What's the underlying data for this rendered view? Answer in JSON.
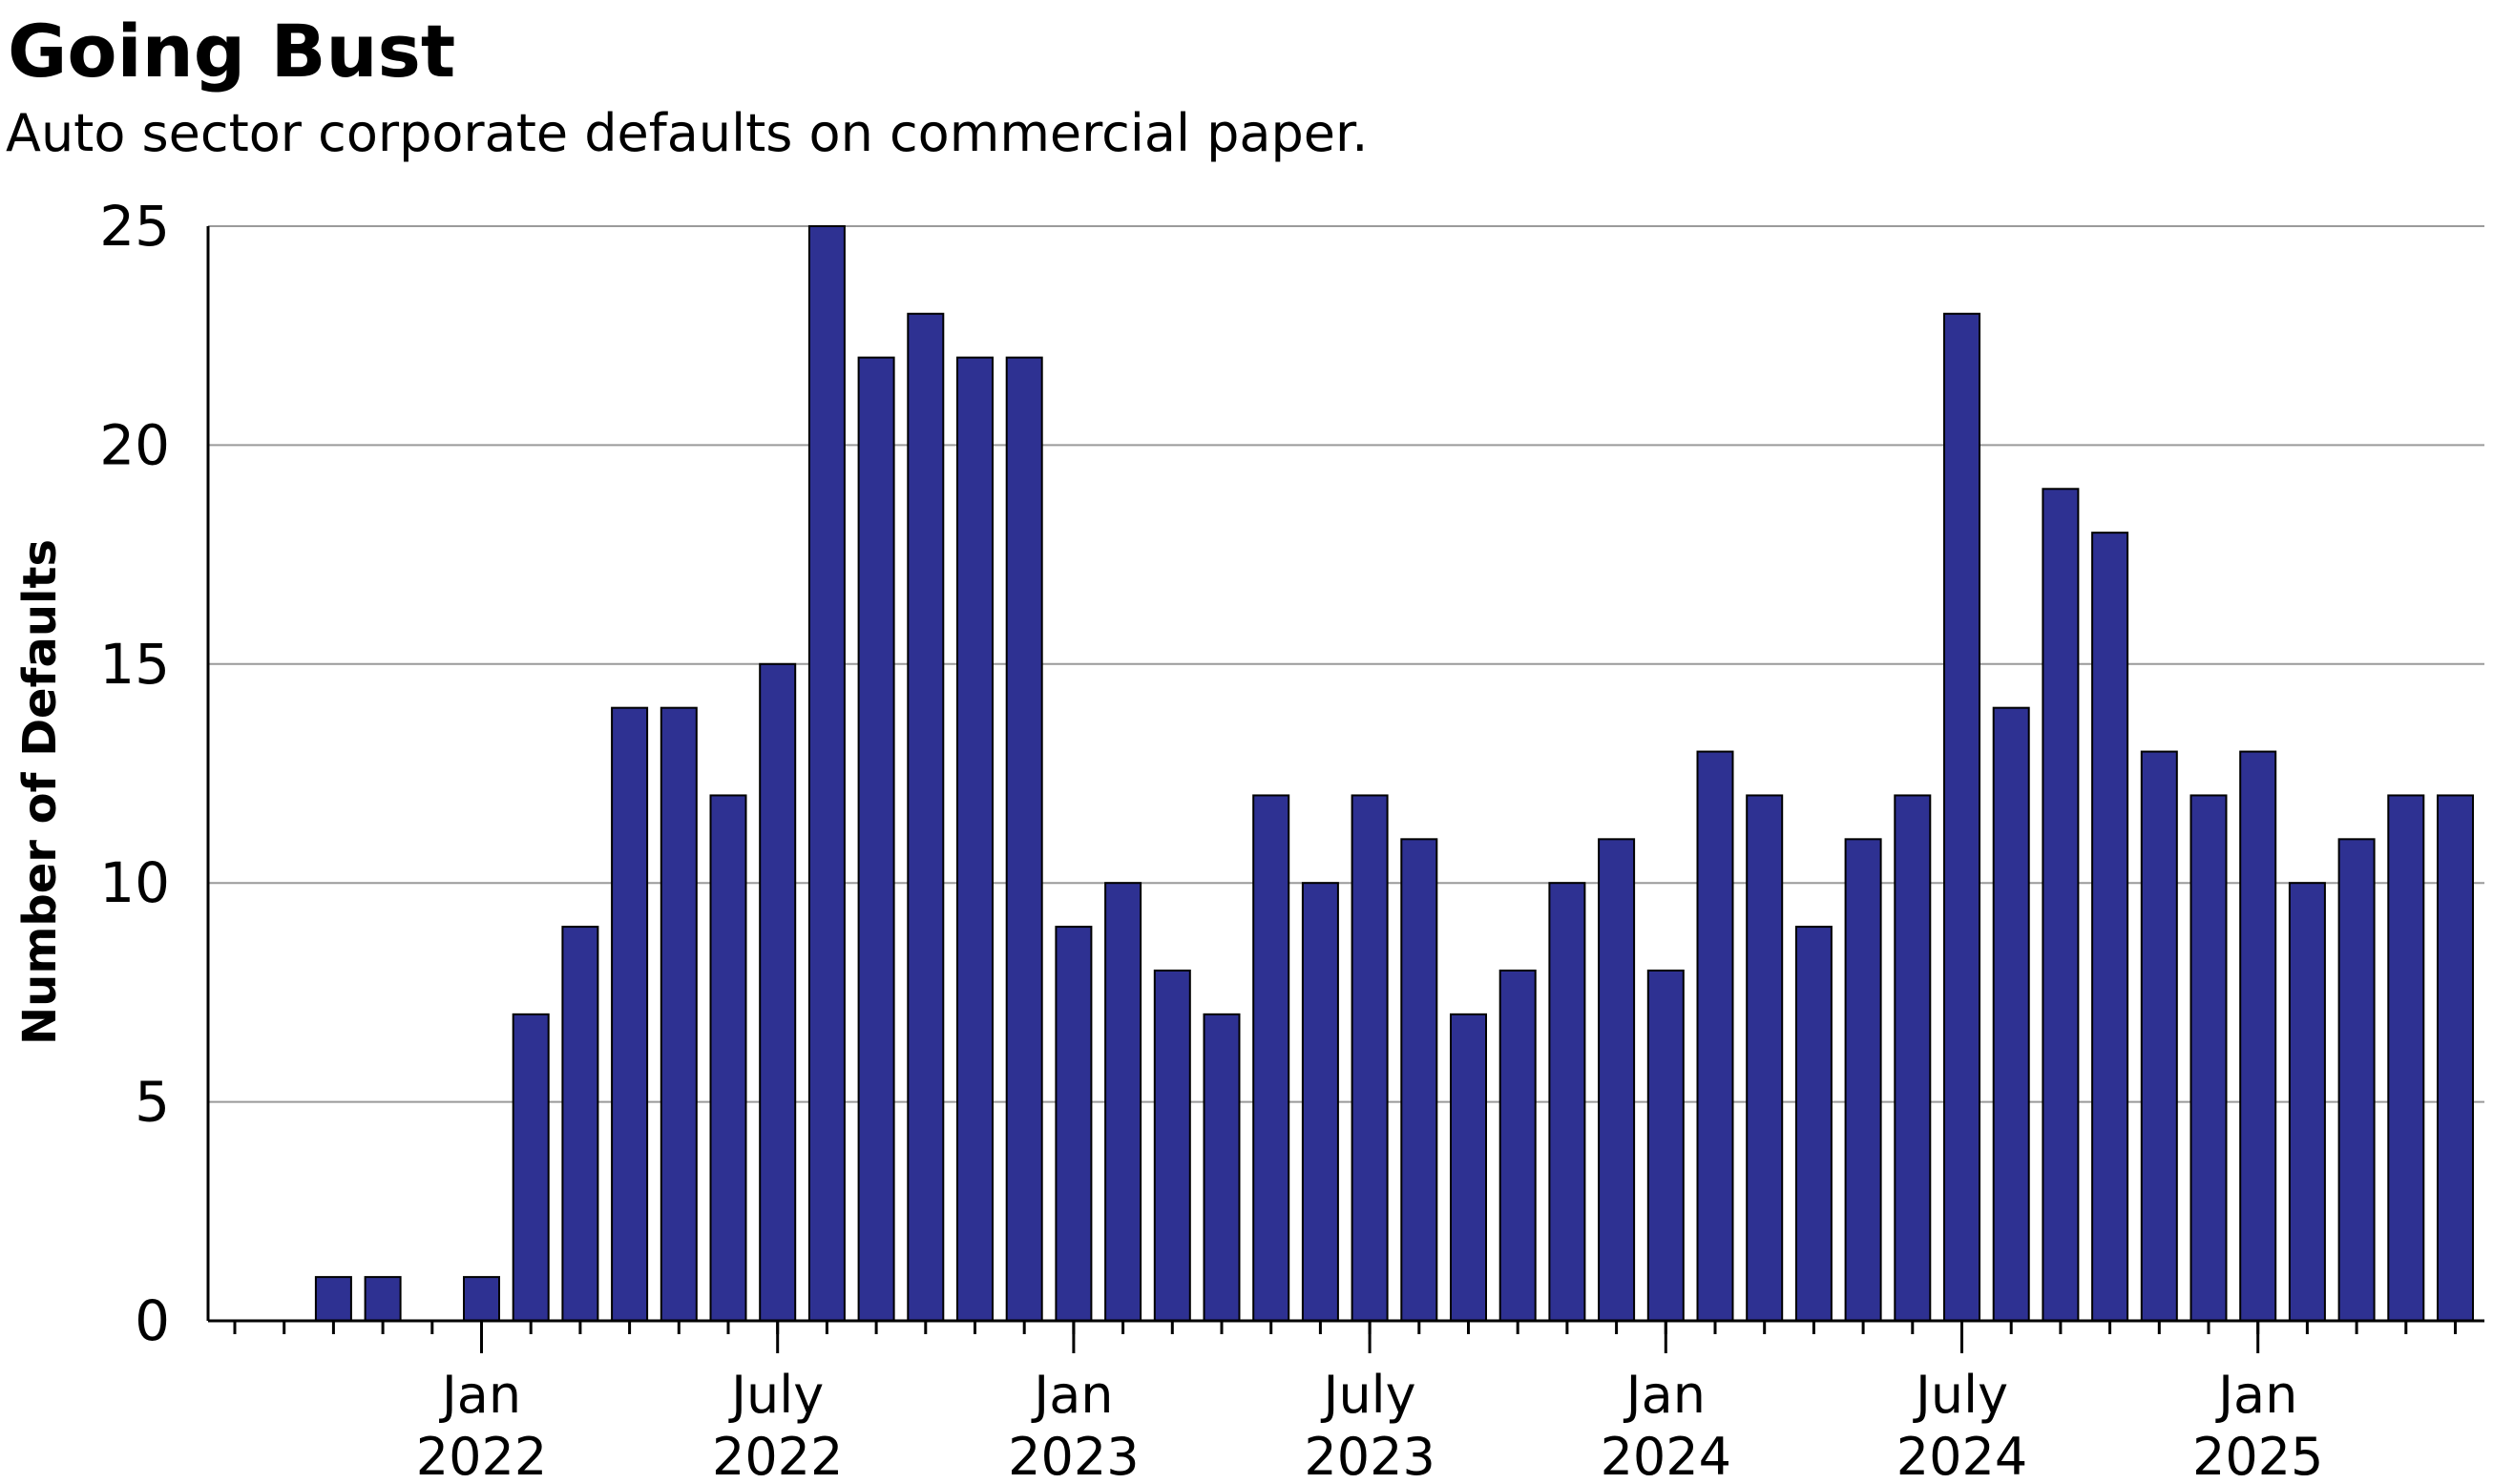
{
  "chart_data": {
    "type": "bar",
    "title": "Going Bust",
    "subtitle": "Auto sector corporate defaults on commercial paper.",
    "ylabel": "Number of Defaults",
    "xlabel": "",
    "ylim": [
      0,
      25
    ],
    "yticks": [
      0,
      5,
      10,
      15,
      20,
      25
    ],
    "grid": true,
    "bar_color": "#2e3192",
    "categories": [
      "2021-08",
      "2021-09",
      "2021-10",
      "2021-11",
      "2021-12",
      "2022-01",
      "2022-02",
      "2022-03",
      "2022-04",
      "2022-05",
      "2022-06",
      "2022-07",
      "2022-08",
      "2022-09",
      "2022-10",
      "2022-11",
      "2022-12",
      "2023-01",
      "2023-02",
      "2023-03",
      "2023-04",
      "2023-05",
      "2023-06",
      "2023-07",
      "2023-08",
      "2023-09",
      "2023-10",
      "2023-11",
      "2023-12",
      "2024-01",
      "2024-02",
      "2024-03",
      "2024-04",
      "2024-05",
      "2024-06",
      "2024-07",
      "2024-08",
      "2024-09",
      "2024-10",
      "2024-11",
      "2024-12",
      "2025-01",
      "2025-02",
      "2025-03",
      "2025-04",
      "2025-05",
      "2025-06"
    ],
    "values": [
      0,
      0,
      1,
      1,
      0,
      1,
      7,
      9,
      14,
      14,
      12,
      15,
      25,
      22,
      23,
      22,
      22,
      9,
      10,
      8,
      7,
      12,
      10,
      12,
      11,
      7,
      8,
      10,
      11,
      8,
      13,
      12,
      9,
      11,
      12,
      23,
      14,
      19,
      18,
      13,
      12,
      13,
      10,
      11,
      12,
      12,
      0
    ],
    "x_tick_labels": [
      {
        "category": "2022-01",
        "line1": "Jan",
        "line2": "2022"
      },
      {
        "category": "2022-07",
        "line1": "July",
        "line2": "2022"
      },
      {
        "category": "2023-01",
        "line1": "Jan",
        "line2": "2023"
      },
      {
        "category": "2023-07",
        "line1": "July",
        "line2": "2023"
      },
      {
        "category": "2024-01",
        "line1": "Jan",
        "line2": "2024"
      },
      {
        "category": "2024-07",
        "line1": "July",
        "line2": "2024"
      },
      {
        "category": "2025-01",
        "line1": "Jan",
        "line2": "2025"
      }
    ]
  }
}
